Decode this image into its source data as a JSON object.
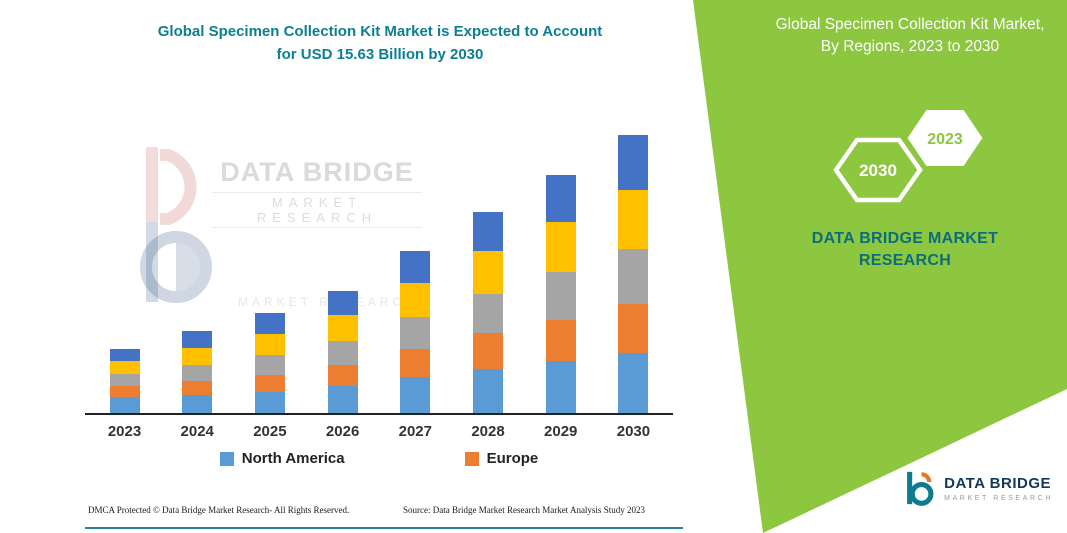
{
  "left_panel": {
    "title_line1": "Global Specimen Collection Kit Market is Expected to Account",
    "title_line2": "for USD 15.63 Billion by 2030",
    "watermark_line1": "DATA BRIDGE",
    "watermark_line2": "MARKET RESEARCH",
    "watermark_ghost": "MARKET RESEARCH",
    "footer_left": "DMCA Protected © Data Bridge Market Research-  All Rights Reserved.",
    "footer_source": "Source: Data Bridge Market Research  Market Analysis Study 2023"
  },
  "right_panel": {
    "title": "Global Specimen Collection Kit Market, By Regions, 2023 to 2030",
    "badge_back": "2030",
    "badge_front": "2023",
    "brand_line1": "DATA BRIDGE MARKET",
    "brand_line2": "RESEARCH"
  },
  "logo": {
    "name": "DATA BRIDGE",
    "subtitle": "MARKET RESEARCH"
  },
  "theme": {
    "green": "#8dc63f",
    "teal": "#0c7f93",
    "brand_teal_dark": "#0a6e7c",
    "navy": "#12395c",
    "orange_accent": "#e87722",
    "divider_blue": "#2b7fa3"
  },
  "chart_data": {
    "type": "bar",
    "stacked": true,
    "title": "",
    "xlabel": "",
    "ylabel": "",
    "unit": "USD Billion",
    "gridlines": false,
    "legend_position": "bottom",
    "ylim": [
      0,
      15.63
    ],
    "categories": [
      "2023",
      "2024",
      "2025",
      "2026",
      "2027",
      "2028",
      "2029",
      "2030"
    ],
    "series": [
      {
        "name": "North America",
        "color": "#5B9BD5",
        "values": [
          0.9,
          1.0,
          1.2,
          1.5,
          2.0,
          2.5,
          2.9,
          3.4
        ]
      },
      {
        "name": "Europe",
        "color": "#ED7D31",
        "values": [
          0.6,
          0.8,
          0.95,
          1.2,
          1.6,
          2.0,
          2.35,
          2.75
        ]
      },
      {
        "name": "",
        "color": "#A5A5A5",
        "values": [
          0.7,
          0.9,
          1.1,
          1.35,
          1.8,
          2.2,
          2.7,
          3.1
        ]
      },
      {
        "name": "",
        "color": "#FFC000",
        "values": [
          0.75,
          0.95,
          1.2,
          1.45,
          1.9,
          2.4,
          2.8,
          3.3
        ]
      },
      {
        "name": "",
        "color": "#4472C4",
        "values": [
          0.65,
          0.95,
          1.15,
          1.35,
          1.8,
          2.2,
          2.65,
          3.08
        ]
      }
    ],
    "totals": [
      3.6,
      4.6,
      5.6,
      6.85,
      9.1,
      11.3,
      13.4,
      15.63
    ],
    "legend": [
      "North America",
      "Europe"
    ]
  }
}
